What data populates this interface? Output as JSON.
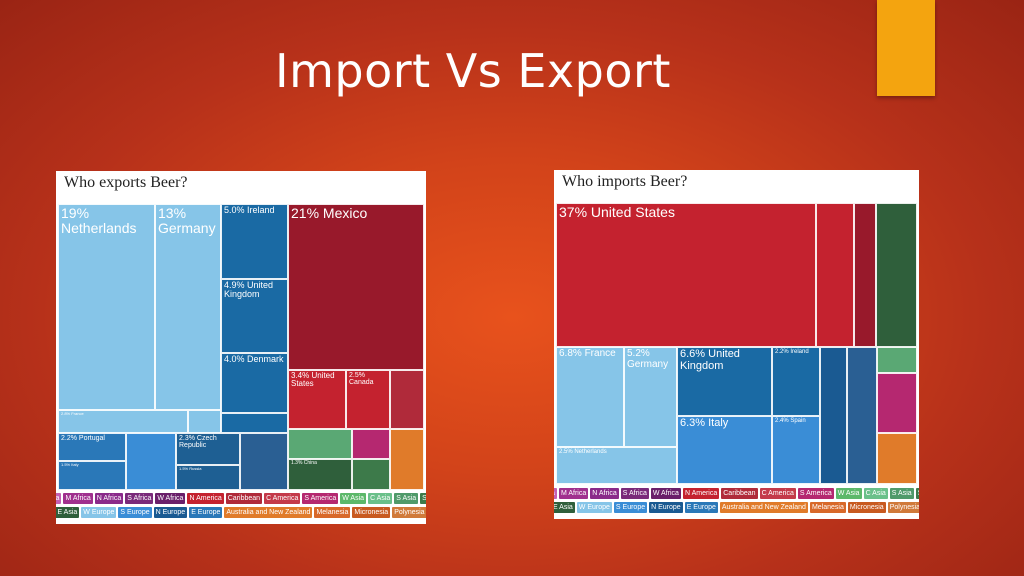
{
  "slide": {
    "title": "Import Vs Export"
  },
  "colors": {
    "accent": "#f4a40f",
    "background": "#d2431a",
    "w_europe": "#86c5e8",
    "e_europe": "#2a78b8",
    "s_europe": "#3a8dd6",
    "n_europe": "#1a5a92",
    "n_america": "#b3202d",
    "e_asia": "#2f5f3b",
    "se_asia": "#5aa874",
    "s_america": "#b52870",
    "c_america": "#c43a4a",
    "australia": "#e07b2a"
  },
  "exports_panel": {
    "title": "Who exports Beer?",
    "tiles": [
      {
        "label": "19%\nNetherlands",
        "size": 14,
        "color": "#86c5e8"
      },
      {
        "label": "13%\nGermany",
        "size": 14,
        "color": "#86c5e8"
      },
      {
        "label": "5.0% Ireland",
        "size": 9,
        "color": "#1a6aa4"
      },
      {
        "label": "4.9% United\nKingdom",
        "size": 9,
        "color": "#1a6aa4"
      },
      {
        "label": "4.0% Denmark",
        "size": 9,
        "color": "#1a6aa4"
      },
      {
        "label": "21% Mexico",
        "size": 14,
        "color": "#98192b"
      },
      {
        "label": "3.4% United\nStates",
        "size": 8,
        "color": "#c4222f"
      },
      {
        "label": "2.5% Canada",
        "size": 8,
        "color": "#c4222f"
      },
      {
        "label": "2.8% France",
        "size": 4,
        "color": "#86c5e8"
      },
      {
        "label": "2.2% Portugal",
        "size": 7,
        "color": "#2a78b8"
      },
      {
        "label": "2.3% Czech Republic",
        "size": 7,
        "color": "#1e5f93"
      },
      {
        "label": "1.5% Italy",
        "size": 4,
        "color": "#2a78b8"
      },
      {
        "label": "1.5% Russia",
        "size": 4,
        "color": "#1e5f93"
      },
      {
        "label": "1.3% China",
        "size": 5,
        "color": "#2f5f3b"
      }
    ],
    "legend_row1": [
      "E Africa",
      "M Africa",
      "N Africa",
      "S Africa",
      "W Africa",
      "N America",
      "Caribbean",
      "C America",
      "S America",
      "W Asia",
      "C Asia",
      "S Asia",
      "SE Asia"
    ],
    "legend_row2": [
      "E Asia",
      "W Europe",
      "S Europe",
      "N Europe",
      "E Europe",
      "Australia and New Zealand",
      "Melanesia",
      "Micronesia",
      "Polynesia"
    ]
  },
  "imports_panel": {
    "title": "Who imports Beer?",
    "tiles": [
      {
        "label": "37% United States",
        "size": 14,
        "color": "#c4222f"
      },
      {
        "label": "6.8% France",
        "size": 10,
        "color": "#86c5e8"
      },
      {
        "label": "5.2%\nGermany",
        "size": 10,
        "color": "#86c5e8"
      },
      {
        "label": "6.6% United\nKingdom",
        "size": 11,
        "color": "#1a6aa4"
      },
      {
        "label": "2.2% Ireland",
        "size": 6,
        "color": "#1a6aa4"
      },
      {
        "label": "6.3% Italy",
        "size": 11,
        "color": "#3a8dd6"
      },
      {
        "label": "2.4% Spain",
        "size": 6,
        "color": "#3a8dd6"
      },
      {
        "label": "2.5% Netherlands",
        "size": 6,
        "color": "#86c5e8"
      }
    ],
    "legend_row1": [
      "E Africa",
      "M Africa",
      "N Africa",
      "S Africa",
      "W Africa",
      "N America",
      "Caribbean",
      "C America",
      "S America",
      "W Asia",
      "C Asia",
      "S Asia",
      "SE Asia"
    ],
    "legend_row2": [
      "E Asia",
      "W Europe",
      "S Europe",
      "N Europe",
      "E Europe",
      "Australia and New Zealand",
      "Melanesia",
      "Micronesia",
      "Polynesia"
    ]
  },
  "legend_colors": {
    "E Africa": "#c45fb3",
    "M Africa": "#a0308e",
    "N Africa": "#8a2a8a",
    "S Africa": "#7a2a7a",
    "W Africa": "#6a1f6a",
    "N America": "#c4222f",
    "Caribbean": "#b02a3a",
    "C America": "#c43a4a",
    "S America": "#b52870",
    "W Asia": "#5cb86a",
    "C Asia": "#6ac08a",
    "S Asia": "#4f9a6a",
    "SE Asia": "#3d7a4a",
    "E Asia": "#2f5f3b",
    "W Europe": "#86c5e8",
    "S Europe": "#3a8dd6",
    "N Europe": "#1a5a92",
    "E Europe": "#2a78b8",
    "Australia and New Zealand": "#e07b2a",
    "Melanesia": "#d8692a",
    "Micronesia": "#c85a20",
    "Polynesia": "#d07a3a"
  }
}
